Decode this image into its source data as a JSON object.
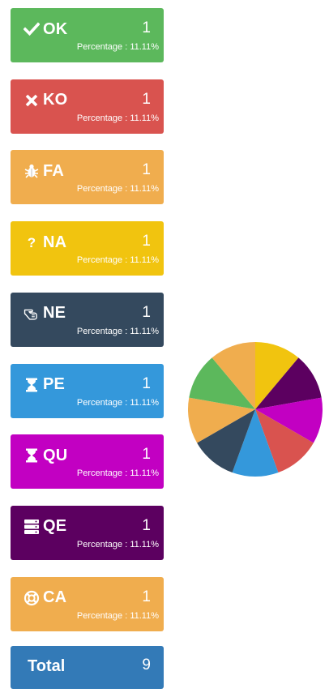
{
  "cards": [
    {
      "label": "OK",
      "count": "1",
      "percentage": "Percentage : 11.11%",
      "color": "#5cb85c",
      "icon": "check-icon"
    },
    {
      "label": "KO",
      "count": "1",
      "percentage": "Percentage : 11.11%",
      "color": "#d9534f",
      "icon": "times-icon"
    },
    {
      "label": "FA",
      "count": "1",
      "percentage": "Percentage : 11.11%",
      "color": "#f0ad4e",
      "icon": "bug-icon"
    },
    {
      "label": "NA",
      "count": "1",
      "percentage": "Percentage : 11.11%",
      "color": "#f1c40f",
      "icon": "question-icon"
    },
    {
      "label": "NE",
      "count": "1",
      "percentage": "Percentage : 11.11%",
      "color": "#34495e",
      "icon": "hand-icon"
    },
    {
      "label": "PE",
      "count": "1",
      "percentage": "Percentage : 11.11%",
      "color": "#3498db",
      "icon": "hourglass-icon"
    },
    {
      "label": "QU",
      "count": "1",
      "percentage": "Percentage : 11.11%",
      "color": "#c200c2",
      "icon": "hourglass-icon"
    },
    {
      "label": "QE",
      "count": "1",
      "percentage": "Percentage : 11.11%",
      "color": "#5c0060",
      "icon": "server-icon"
    },
    {
      "label": "CA",
      "count": "1",
      "percentage": "Percentage : 11.11%",
      "color": "#f0ad4e",
      "icon": "life-ring-icon"
    }
  ],
  "total": {
    "label": "Total",
    "count": "9",
    "color": "#337ab7"
  },
  "chart_data": {
    "type": "pie",
    "categories": [
      "NA",
      "QE",
      "QU",
      "KO",
      "PE",
      "NE",
      "FA",
      "OK",
      "CA"
    ],
    "values": [
      1,
      1,
      1,
      1,
      1,
      1,
      1,
      1,
      1
    ],
    "colors": [
      "#f1c40f",
      "#5c0060",
      "#c200c2",
      "#d9534f",
      "#3498db",
      "#34495e",
      "#f0ad4e",
      "#5cb85c",
      "#f0ad4e"
    ],
    "title": ""
  }
}
